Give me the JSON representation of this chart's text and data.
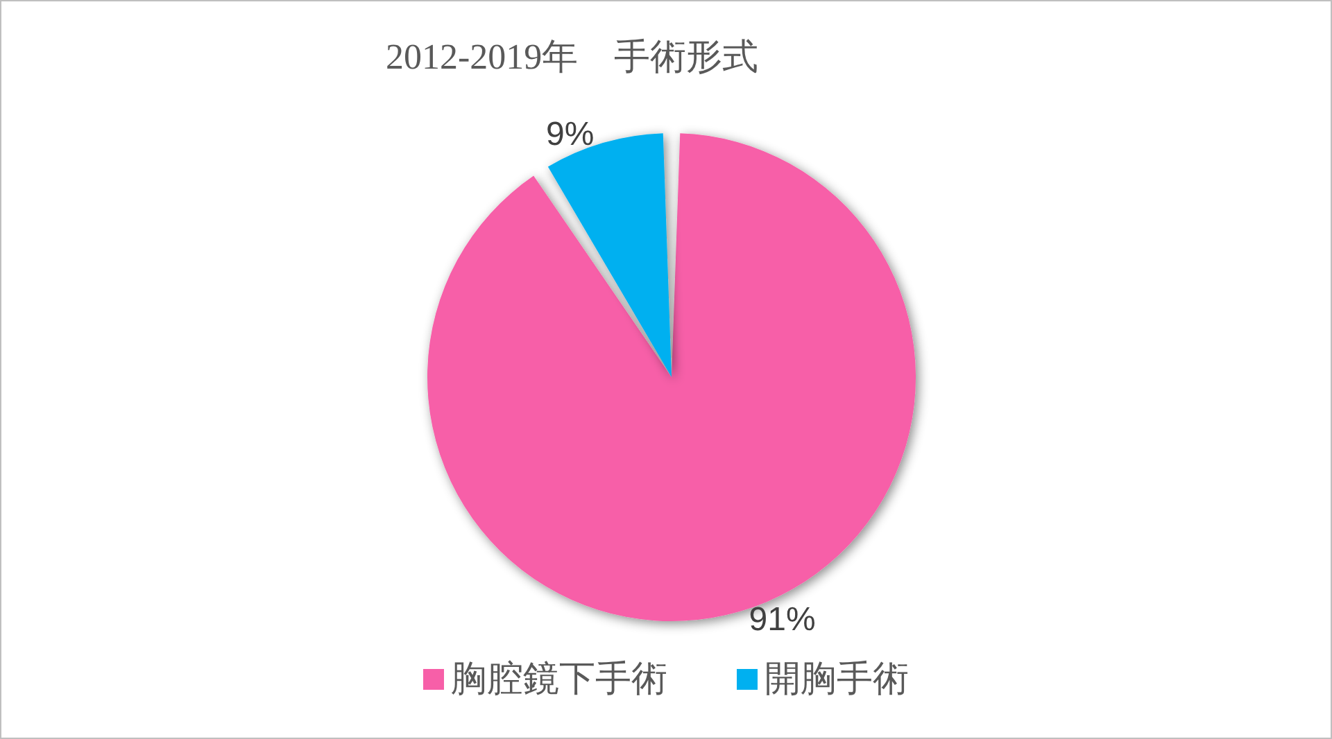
{
  "chart_data": {
    "type": "pie",
    "title": "2012-2019年　手術形式",
    "categories": [
      "胸腔鏡下手術",
      "開胸手術"
    ],
    "values": [
      91,
      9
    ],
    "colors": [
      "#f75fa8",
      "#00b0f0"
    ],
    "value_labels": [
      "91%",
      "9%"
    ],
    "legend": "bottom"
  }
}
